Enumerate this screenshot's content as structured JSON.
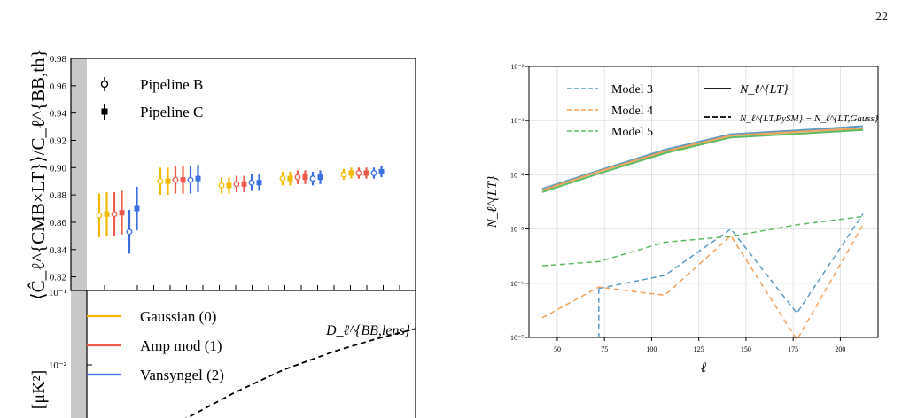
{
  "page_number": "22",
  "chart_data": [
    {
      "type": "scatter",
      "panel": "top-left",
      "ylabel": "⟨Ĉ_ℓ^{CMB×LT}⟩/C_ℓ^{BB,th}",
      "ylim": [
        0.81,
        0.98
      ],
      "yticks": [
        "0.82",
        "0.84",
        "0.86",
        "0.88",
        "0.90",
        "0.92",
        "0.94",
        "0.96",
        "0.98"
      ],
      "ytick_values": [
        0.82,
        0.84,
        0.86,
        0.88,
        0.9,
        0.92,
        0.94,
        0.96,
        0.98
      ],
      "bottom_label": "10⁻¹",
      "legend": {
        "placement": "top-left",
        "entries": [
          "Pipeline B",
          "Pipeline C"
        ]
      },
      "bins": [
        {
          "points": [
            {
              "method": 0,
              "pipeline": "B",
              "y": 0.865,
              "err": 0.016
            },
            {
              "method": 0,
              "pipeline": "C",
              "y": 0.866,
              "err": 0.016
            },
            {
              "method": 1,
              "pipeline": "B",
              "y": 0.866,
              "err": 0.016
            },
            {
              "method": 1,
              "pipeline": "C",
              "y": 0.867,
              "err": 0.016
            },
            {
              "method": 2,
              "pipeline": "B",
              "y": 0.853,
              "err": 0.016
            },
            {
              "method": 2,
              "pipeline": "C",
              "y": 0.87,
              "err": 0.016
            }
          ]
        },
        {
          "points": [
            {
              "method": 0,
              "pipeline": "B",
              "y": 0.89,
              "err": 0.01
            },
            {
              "method": 0,
              "pipeline": "C",
              "y": 0.89,
              "err": 0.01
            },
            {
              "method": 1,
              "pipeline": "B",
              "y": 0.891,
              "err": 0.01
            },
            {
              "method": 1,
              "pipeline": "C",
              "y": 0.891,
              "err": 0.01
            },
            {
              "method": 2,
              "pipeline": "B",
              "y": 0.891,
              "err": 0.01
            },
            {
              "method": 2,
              "pipeline": "C",
              "y": 0.892,
              "err": 0.01
            }
          ]
        },
        {
          "points": [
            {
              "method": 0,
              "pipeline": "B",
              "y": 0.887,
              "err": 0.006
            },
            {
              "method": 0,
              "pipeline": "C",
              "y": 0.887,
              "err": 0.006
            },
            {
              "method": 1,
              "pipeline": "B",
              "y": 0.888,
              "err": 0.006
            },
            {
              "method": 1,
              "pipeline": "C",
              "y": 0.888,
              "err": 0.006
            },
            {
              "method": 2,
              "pipeline": "B",
              "y": 0.889,
              "err": 0.006
            },
            {
              "method": 2,
              "pipeline": "C",
              "y": 0.889,
              "err": 0.006
            }
          ]
        },
        {
          "points": [
            {
              "method": 0,
              "pipeline": "B",
              "y": 0.892,
              "err": 0.005
            },
            {
              "method": 0,
              "pipeline": "C",
              "y": 0.892,
              "err": 0.005
            },
            {
              "method": 1,
              "pipeline": "B",
              "y": 0.893,
              "err": 0.005
            },
            {
              "method": 1,
              "pipeline": "C",
              "y": 0.893,
              "err": 0.005
            },
            {
              "method": 2,
              "pipeline": "B",
              "y": 0.892,
              "err": 0.005
            },
            {
              "method": 2,
              "pipeline": "C",
              "y": 0.893,
              "err": 0.005
            }
          ]
        },
        {
          "points": [
            {
              "method": 0,
              "pipeline": "B",
              "y": 0.895,
              "err": 0.004
            },
            {
              "method": 0,
              "pipeline": "C",
              "y": 0.896,
              "err": 0.004
            },
            {
              "method": 1,
              "pipeline": "B",
              "y": 0.896,
              "err": 0.004
            },
            {
              "method": 1,
              "pipeline": "C",
              "y": 0.896,
              "err": 0.004
            },
            {
              "method": 2,
              "pipeline": "B",
              "y": 0.896,
              "err": 0.004
            },
            {
              "method": 2,
              "pipeline": "C",
              "y": 0.897,
              "err": 0.004
            }
          ]
        }
      ],
      "method_colors": [
        "#F5B800",
        "#F05A4A",
        "#3B6FE0"
      ]
    },
    {
      "type": "line",
      "panel": "bottom-left",
      "ylabel": "[μK²]",
      "ytick": "10⁻²",
      "legend": {
        "placement": "top-left",
        "entries": [
          {
            "name": "Gaussian (0)",
            "color": "#F5B800"
          },
          {
            "name": "Amp mod (1)",
            "color": "#F05A4A"
          },
          {
            "name": "Vansyngel (2)",
            "color": "#3B6FE0"
          }
        ]
      },
      "annotation": "D_ℓ^{BB,lens}",
      "lens_curve": {
        "x_frac": [
          0.29,
          0.45,
          0.6,
          0.75,
          0.88,
          1.0
        ],
        "y_frac": [
          1.02,
          0.8,
          0.62,
          0.48,
          0.38,
          0.3
        ]
      }
    },
    {
      "type": "line",
      "panel": "right",
      "xlabel": "ℓ",
      "ylabel": "N_ℓ^{LT}",
      "yscale": "log",
      "xlim": [
        35,
        220
      ],
      "ylim": [
        1e-07,
        0.01
      ],
      "xticks": [
        50,
        75,
        100,
        125,
        150,
        175,
        200
      ],
      "yticks": [
        1e-07,
        1e-06,
        1e-05,
        0.0001,
        0.001,
        0.01
      ],
      "ytick_labels": [
        "10⁻⁷",
        "10⁻⁶",
        "10⁻⁵",
        "10⁻⁴",
        "10⁻³",
        "10⁻²"
      ],
      "legend": {
        "placement": "top",
        "models": [
          {
            "name": "Model 3",
            "color": "#5A9BC4"
          },
          {
            "name": "Model 4",
            "color": "#F4A259"
          },
          {
            "name": "Model 5",
            "color": "#5DBB63"
          }
        ],
        "styles": [
          {
            "label": "N_ℓ^{LT}",
            "style": "solid"
          },
          {
            "label": "N_ℓ^{LT,PySM} − N_ℓ^{LT,Gauss}",
            "style": "dashed"
          }
        ]
      },
      "x": [
        42,
        72,
        107,
        142,
        177,
        212
      ],
      "series": [
        {
          "model": "Model 3",
          "style": "solid",
          "color": "#5A9BC4",
          "values": [
            5.5e-05,
            0.00012,
            0.00029,
            0.00056,
            0.00066,
            0.00079
          ]
        },
        {
          "model": "Model 4",
          "style": "solid",
          "color": "#F4A259",
          "values": [
            5.2e-05,
            0.000115,
            0.00027,
            0.00053,
            0.00062,
            0.00072
          ]
        },
        {
          "model": "Model 5",
          "style": "solid",
          "color": "#5DBB63",
          "values": [
            4.8e-05,
            0.000105,
            0.00025,
            0.00049,
            0.00057,
            0.00067
          ]
        },
        {
          "model": "Model 3",
          "style": "dashed",
          "color": "#5A9BC4",
          "x": [
            72,
            107,
            142,
            177,
            212
          ],
          "values": [
            8e-07,
            1.4e-06,
            1e-05,
            2.8e-07,
            1.9e-05
          ]
        },
        {
          "model": "Model 4",
          "style": "dashed",
          "color": "#F4A259",
          "x": [
            42,
            72,
            107,
            142,
            177,
            212
          ],
          "values": [
            2.3e-07,
            8.5e-07,
            6e-07,
            7.5e-06,
            9e-08,
            1.2e-05
          ]
        },
        {
          "model": "Model 5",
          "style": "dashed",
          "color": "#5DBB63",
          "values": [
            2.1e-06,
            2.5e-06,
            5.7e-06,
            7.3e-06,
            1.2e-05,
            1.7e-05
          ]
        }
      ]
    }
  ]
}
